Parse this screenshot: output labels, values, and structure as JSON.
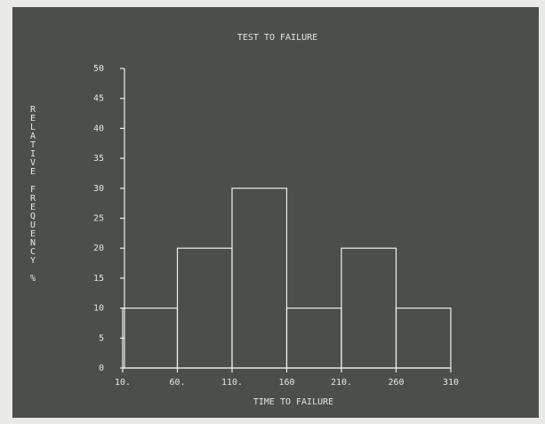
{
  "chart_data": {
    "type": "histogram",
    "title": "TEST TO FAILURE",
    "x_label": "TIME TO FAILURE",
    "y_label": "RELATIVE FREQUENCY %",
    "bins": [
      10,
      60,
      110,
      160,
      210,
      260,
      310
    ],
    "values": [
      10,
      20,
      30,
      10,
      20,
      10
    ],
    "color": "#eef0ec",
    "xlim": [
      10,
      310
    ],
    "xticks": [
      {
        "value": 10,
        "label": "10."
      },
      {
        "value": 60,
        "label": "60."
      },
      {
        "value": 110,
        "label": "110."
      },
      {
        "value": 160,
        "label": "160"
      },
      {
        "value": 210,
        "label": "210."
      },
      {
        "value": 260,
        "label": "260"
      },
      310
    ],
    "ylim": [
      0,
      50
    ],
    "yticks": [
      0,
      5,
      10,
      15,
      20,
      25,
      30,
      35,
      40,
      45,
      50
    ]
  }
}
